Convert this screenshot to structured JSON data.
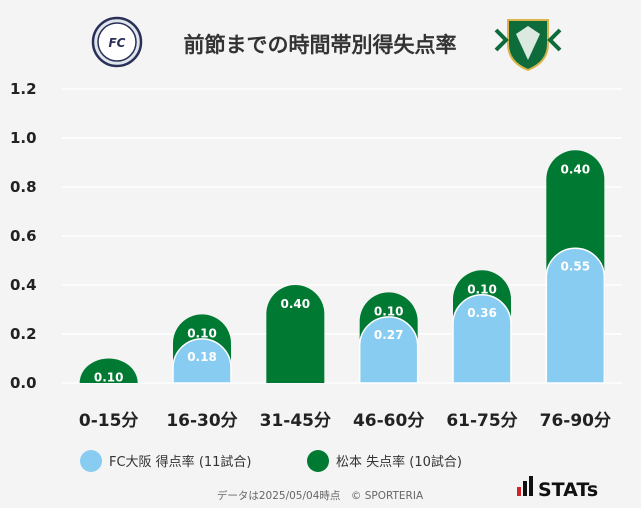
{
  "chart_data": {
    "type": "bar",
    "title": "前節までの時間帯別得失点率",
    "categories": [
      "0-15分",
      "16-30分",
      "31-45分",
      "46-60分",
      "61-75分",
      "76-90分"
    ],
    "series": [
      {
        "name": "FC大阪 得点率 (11試合)",
        "color": "#88ccf1",
        "values": [
          0.0,
          0.18,
          0.0,
          0.27,
          0.36,
          0.55
        ]
      },
      {
        "name": "松本 失点率 (10試合)",
        "color": "#007a33",
        "values": [
          0.1,
          0.1,
          0.4,
          0.1,
          0.1,
          0.4
        ]
      }
    ],
    "value_labels": [
      [
        "",
        "0.18",
        "",
        "0.27",
        "0.36",
        "0.55"
      ],
      [
        "0.10",
        "0.10",
        "0.40",
        "0.10",
        "0.10",
        "0.40"
      ]
    ],
    "stacked": true,
    "ylim": [
      0,
      1.2
    ],
    "yticks": [
      "0.0",
      "0.2",
      "0.4",
      "0.6",
      "0.8",
      "1.0",
      "1.2"
    ],
    "grid": true,
    "legend_position": "bottom"
  },
  "footer": {
    "note": "データは2025/05/04時点　© SPORTERIA",
    "brand": "STATs"
  },
  "logos": {
    "left": "FC OSAKA",
    "right": "MATSUMOTO YAMAGA"
  }
}
